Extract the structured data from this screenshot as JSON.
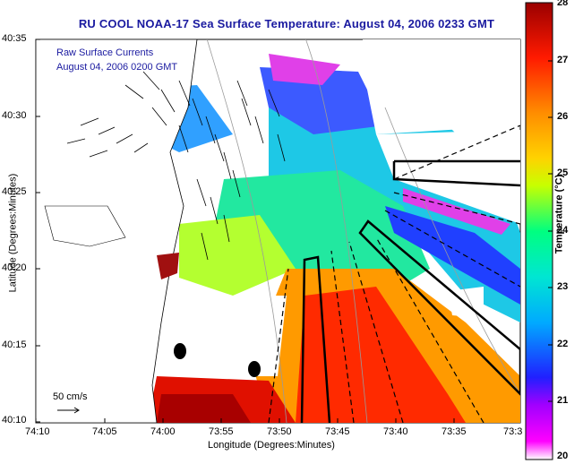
{
  "title": "RU COOL  NOAA-17  Sea Surface Temperature:  August 04, 2006 0233 GMT",
  "legend": {
    "line1": "Raw Surface Currents",
    "line2": "August 04, 2006 0200 GMT"
  },
  "scale_arrow_label": "50 cm/s",
  "axes": {
    "ylabel": "Latitude (Degrees:Minutes)",
    "xlabel": "Longitude (Degrees:Minutes)",
    "yticks": [
      "40:35",
      "40:30",
      "40:25",
      "40:20",
      "40:15",
      "40:10"
    ],
    "xticks": [
      "74:10",
      "74:05",
      "74:00",
      "73:55",
      "73:50",
      "73:45",
      "73:40",
      "73:35",
      "73:3"
    ]
  },
  "colorbar": {
    "label": "Temperature (°C)",
    "ticks": [
      "28",
      "27",
      "26",
      "25",
      "24",
      "23",
      "22",
      "21",
      "20"
    ],
    "min": 20,
    "max": 28,
    "colors": [
      "#ff00ff",
      "#2020ff",
      "#00c8ff",
      "#00ffb4",
      "#b4ff00",
      "#ffd200",
      "#ff8000",
      "#ff1a00",
      "#a00000"
    ]
  },
  "chart_data": {
    "type": "heatmap",
    "title": "RU COOL  NOAA-17  Sea Surface Temperature:  August 04, 2006 0233 GMT",
    "xlabel": "Longitude (Degrees:Minutes)",
    "ylabel": "Latitude (Degrees:Minutes)",
    "variable": "Sea Surface Temperature",
    "unit": "°C",
    "value_range": [
      20,
      28
    ],
    "lat_range": [
      "40:10",
      "40:35"
    ],
    "lon_range": [
      "74:10",
      "73:3"
    ],
    "colormap": "rainbow, magenta (20) to dark red (28)"
  }
}
